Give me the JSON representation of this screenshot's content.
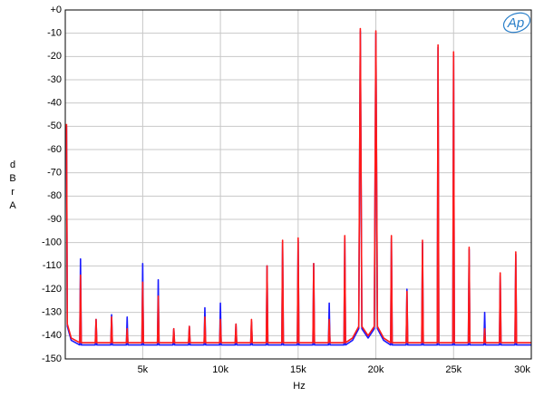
{
  "chart_data": {
    "type": "line",
    "logo": "Ap",
    "xlabel": "Hz",
    "ylabel": "dBrA",
    "xlim": [
      20,
      30000
    ],
    "ylim": [
      -150,
      0
    ],
    "xticks": [
      {
        "value": 5000,
        "label": "5k"
      },
      {
        "value": 10000,
        "label": "10k"
      },
      {
        "value": 15000,
        "label": "15k"
      },
      {
        "value": 20000,
        "label": "20k"
      },
      {
        "value": 25000,
        "label": "25k"
      },
      {
        "value": 30000,
        "label": "30k"
      }
    ],
    "yticks": [
      {
        "value": 0,
        "label": "+0"
      },
      -10,
      -20,
      -30,
      -40,
      -50,
      -60,
      -70,
      -80,
      -90,
      -100,
      -110,
      -120,
      -130,
      -140,
      -150
    ],
    "grid": true,
    "x": [
      100,
      150,
      400,
      950,
      1000,
      1050,
      1950,
      2000,
      2050,
      2950,
      3000,
      3050,
      3950,
      4000,
      4050,
      4950,
      5000,
      5050,
      5950,
      6000,
      6050,
      6950,
      7000,
      7050,
      7950,
      8000,
      8050,
      8950,
      9000,
      9050,
      9950,
      10000,
      10050,
      10950,
      11000,
      11050,
      11950,
      12000,
      12050,
      12950,
      13000,
      13050,
      13950,
      14000,
      14050,
      14950,
      15000,
      15050,
      15950,
      16000,
      16050,
      16950,
      17000,
      17050,
      17950,
      18000,
      18050,
      18500,
      18900,
      19000,
      19100,
      19500,
      19900,
      20000,
      20100,
      20500,
      20950,
      21000,
      21050,
      21950,
      22000,
      22050,
      22950,
      23000,
      23050,
      23950,
      24000,
      24050,
      24950,
      25000,
      25050,
      25950,
      26000,
      26050,
      26950,
      27000,
      27050,
      27950,
      28000,
      28050,
      28950,
      29000,
      29050,
      30000
    ],
    "series": [
      {
        "color": "#1a1aff",
        "values": [
          -50,
          -136,
          -142,
          -144,
          -107,
          -144,
          -144,
          -133,
          -144,
          -144,
          -131,
          -144,
          -144,
          -132,
          -144,
          -144,
          -109,
          -144,
          -144,
          -116,
          -144,
          -144,
          -137,
          -144,
          -144,
          -136,
          -144,
          -144,
          -128,
          -144,
          -144,
          -126,
          -144,
          -144,
          -135,
          -144,
          -144,
          -134,
          -144,
          -144,
          -110,
          -144,
          -144,
          -100,
          -144,
          -144,
          -99,
          -144,
          -144,
          -109,
          -144,
          -144,
          -126,
          -144,
          -144,
          -98,
          -144,
          -142,
          -137,
          -9,
          -137,
          -141,
          -137,
          -10,
          -137,
          -142,
          -144,
          -98,
          -144,
          -144,
          -120,
          -144,
          -144,
          -100,
          -144,
          -144,
          -16,
          -144,
          -144,
          -19,
          -144,
          -144,
          -103,
          -144,
          -144,
          -130,
          -144,
          -144,
          -114,
          -144,
          -144,
          -105,
          -144,
          -144
        ]
      },
      {
        "color": "#ff1a1a",
        "values": [
          -49,
          -135,
          -141,
          -143,
          -114,
          -143,
          -143,
          -133,
          -143,
          -143,
          -132,
          -143,
          -143,
          -137,
          -143,
          -143,
          -117,
          -143,
          -143,
          -123,
          -143,
          -143,
          -137,
          -143,
          -143,
          -136,
          -143,
          -143,
          -132,
          -143,
          -143,
          -133,
          -143,
          -143,
          -135,
          -143,
          -143,
          -133,
          -143,
          -143,
          -110,
          -143,
          -143,
          -99,
          -143,
          -143,
          -98,
          -143,
          -143,
          -109,
          -143,
          -143,
          -133,
          -143,
          -143,
          -97,
          -143,
          -141,
          -136,
          -8,
          -136,
          -140,
          -136,
          -9,
          -136,
          -141,
          -143,
          -97,
          -143,
          -143,
          -121,
          -143,
          -143,
          -99,
          -143,
          -143,
          -15,
          -143,
          -143,
          -18,
          -143,
          -143,
          -102,
          -143,
          -143,
          -137,
          -143,
          -143,
          -113,
          -143,
          -143,
          -104,
          -143,
          -143
        ]
      }
    ]
  }
}
